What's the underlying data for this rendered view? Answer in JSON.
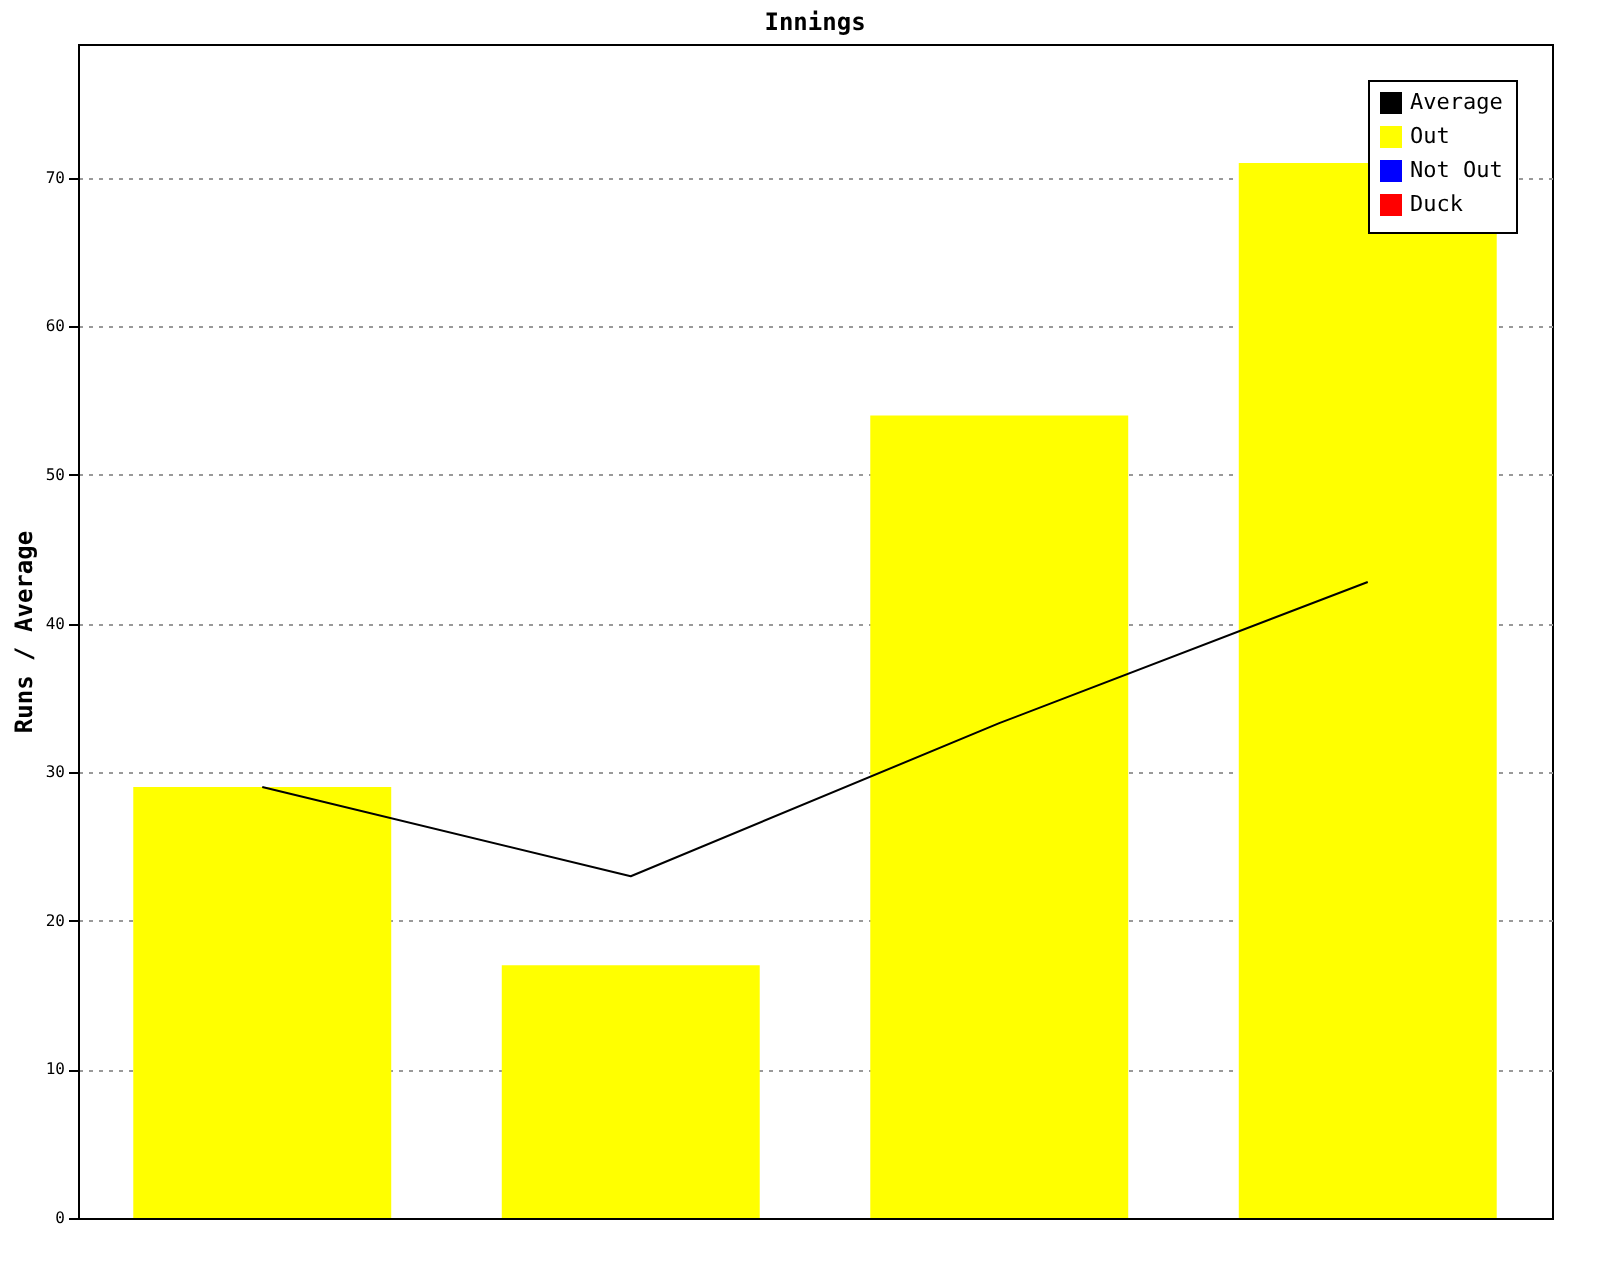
{
  "chart_data": {
    "type": "bar",
    "title": "Innings",
    "ylabel": "Runs / Average",
    "categories": [
      null,
      null,
      null,
      null
    ],
    "series": [
      {
        "name": "Average",
        "type": "line",
        "color": "#000000",
        "values": [
          29,
          23,
          33.3,
          42.8
        ]
      },
      {
        "name": "Out",
        "color": "#ffff00",
        "values": [
          29,
          17,
          54,
          71
        ]
      },
      {
        "name": "Not Out",
        "color": "#0000ff",
        "values": [
          null,
          null,
          null,
          null
        ]
      },
      {
        "name": "Duck",
        "color": "#ff0000",
        "values": [
          null,
          null,
          null,
          null
        ]
      }
    ],
    "ylim": [
      0,
      79
    ],
    "yticks": [
      0,
      10,
      20,
      30,
      40,
      50,
      60,
      70
    ],
    "grid": "y",
    "legend": "top right",
    "tick_labels": "y"
  }
}
